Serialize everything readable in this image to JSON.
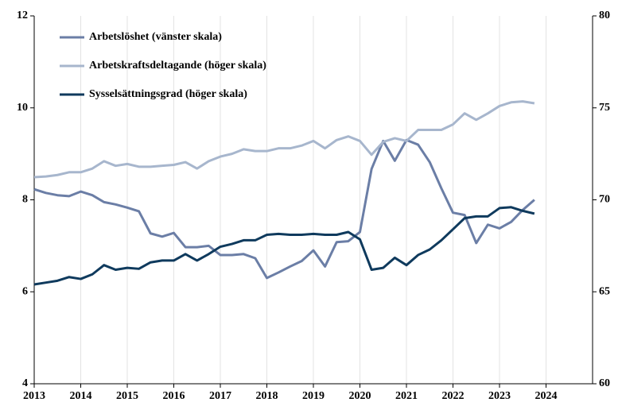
{
  "chart_data": {
    "type": "line",
    "x": [
      2013,
      2013.25,
      2013.5,
      2013.75,
      2014,
      2014.25,
      2014.5,
      2014.75,
      2015,
      2015.25,
      2015.5,
      2015.75,
      2016,
      2016.25,
      2016.5,
      2016.75,
      2017,
      2017.25,
      2017.5,
      2017.75,
      2018,
      2018.25,
      2018.5,
      2018.75,
      2019,
      2019.25,
      2019.5,
      2019.75,
      2020,
      2020.25,
      2020.5,
      2020.75,
      2021,
      2021.25,
      2021.5,
      2021.75,
      2022,
      2022.25,
      2022.5,
      2022.75,
      2023,
      2023.25,
      2023.5,
      2023.75
    ],
    "xlim": [
      2013,
      2025
    ],
    "xticks": [
      2013,
      2014,
      2015,
      2016,
      2017,
      2018,
      2019,
      2020,
      2021,
      2022,
      2023,
      2024
    ],
    "ylim": [
      4,
      12
    ],
    "yticks": [
      4,
      6,
      8,
      10,
      12
    ],
    "y2lim": [
      60,
      80
    ],
    "y2ticks": [
      60,
      65,
      70,
      75,
      80
    ],
    "grid": true,
    "legend": "upper left",
    "series": [
      {
        "name": "Arbetslöshet (vänster skala)",
        "color": "#6b7ea6",
        "values": [
          8.23,
          8.15,
          8.1,
          8.08,
          8.18,
          8.1,
          7.95,
          7.9,
          7.83,
          7.75,
          7.27,
          7.2,
          7.28,
          6.97,
          6.97,
          7.0,
          6.8,
          6.8,
          6.82,
          6.73,
          6.3,
          6.42,
          6.55,
          6.67,
          6.9,
          6.55,
          7.08,
          7.1,
          7.3,
          8.67,
          9.28,
          8.85,
          9.3,
          9.2,
          8.82,
          8.25,
          7.72,
          7.67,
          7.06,
          7.46,
          7.38,
          7.52,
          7.78,
          8.0
        ]
      },
      {
        "name": "Arbetskraftsdeltagande (höger skala)",
        "color": "#a7b6cd",
        "axis": "y2",
        "values": [
          71.23,
          71.27,
          71.35,
          71.5,
          71.5,
          71.7,
          72.1,
          71.85,
          71.95,
          71.8,
          71.8,
          71.85,
          71.9,
          72.05,
          71.7,
          72.1,
          72.35,
          72.5,
          72.75,
          72.65,
          72.65,
          72.8,
          72.8,
          72.95,
          73.2,
          72.8,
          73.25,
          73.45,
          73.2,
          72.45,
          73.15,
          73.35,
          73.2,
          73.8,
          73.8,
          73.8,
          74.1,
          74.7,
          74.35,
          74.7,
          75.1,
          75.3,
          75.35,
          75.25
        ]
      },
      {
        "name": "Sysselsättningsgrad (höger skala)",
        "color": "#0f3a5d",
        "axis": "y2",
        "values": [
          65.4,
          65.5,
          65.6,
          65.8,
          65.7,
          65.95,
          66.45,
          66.2,
          66.3,
          66.25,
          66.6,
          66.7,
          66.7,
          67.05,
          66.7,
          67.05,
          67.45,
          67.6,
          67.8,
          67.8,
          68.1,
          68.15,
          68.1,
          68.1,
          68.15,
          68.1,
          68.1,
          68.25,
          67.85,
          66.2,
          66.3,
          66.85,
          66.45,
          67.0,
          67.3,
          67.8,
          68.4,
          69.0,
          69.1,
          69.1,
          69.55,
          69.6,
          69.4,
          69.25
        ]
      }
    ]
  }
}
